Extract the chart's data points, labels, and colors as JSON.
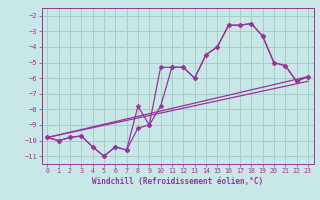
{
  "xlabel": "Windchill (Refroidissement éolien,°C)",
  "bg_color": "#c8e8e8",
  "grid_color": "#a8cccc",
  "line_color": "#993399",
  "xlim": [
    -0.5,
    23.5
  ],
  "ylim": [
    -11.5,
    -1.5
  ],
  "yticks": [
    -11,
    -10,
    -9,
    -8,
    -7,
    -6,
    -5,
    -4,
    -3,
    -2
  ],
  "xticks": [
    0,
    1,
    2,
    3,
    4,
    5,
    6,
    7,
    8,
    9,
    10,
    11,
    12,
    13,
    14,
    15,
    16,
    17,
    18,
    19,
    20,
    21,
    22,
    23
  ],
  "line1_x": [
    0,
    1,
    2,
    3,
    4,
    5,
    6,
    7,
    8,
    9,
    10,
    11,
    12,
    13,
    14,
    15,
    16,
    17,
    18,
    19,
    20,
    21,
    22,
    23
  ],
  "line1_y": [
    -9.8,
    -10.0,
    -9.8,
    -9.7,
    -10.4,
    -11.0,
    -10.4,
    -10.6,
    -9.2,
    -9.0,
    -7.8,
    -5.3,
    -5.3,
    -6.0,
    -4.5,
    -4.0,
    -2.6,
    -2.6,
    -2.5,
    -3.3,
    -5.0,
    -5.2,
    -6.2,
    -5.9
  ],
  "line2_x": [
    0,
    1,
    2,
    3,
    4,
    5,
    6,
    7,
    8,
    9,
    10,
    11,
    12,
    13,
    14,
    15,
    16,
    17,
    18,
    19,
    20,
    21,
    22,
    23
  ],
  "line2_y": [
    -9.8,
    -10.0,
    -9.8,
    -9.7,
    -10.4,
    -11.0,
    -10.4,
    -10.6,
    -7.8,
    -9.0,
    -5.3,
    -5.3,
    -5.3,
    -6.0,
    -4.5,
    -4.0,
    -2.6,
    -2.6,
    -2.5,
    -3.3,
    -5.0,
    -5.2,
    -6.2,
    -5.9
  ],
  "line3_x": [
    0,
    23
  ],
  "line3_y": [
    -9.8,
    -5.9
  ],
  "line4_x": [
    0,
    23
  ],
  "line4_y": [
    -9.8,
    -6.2
  ]
}
